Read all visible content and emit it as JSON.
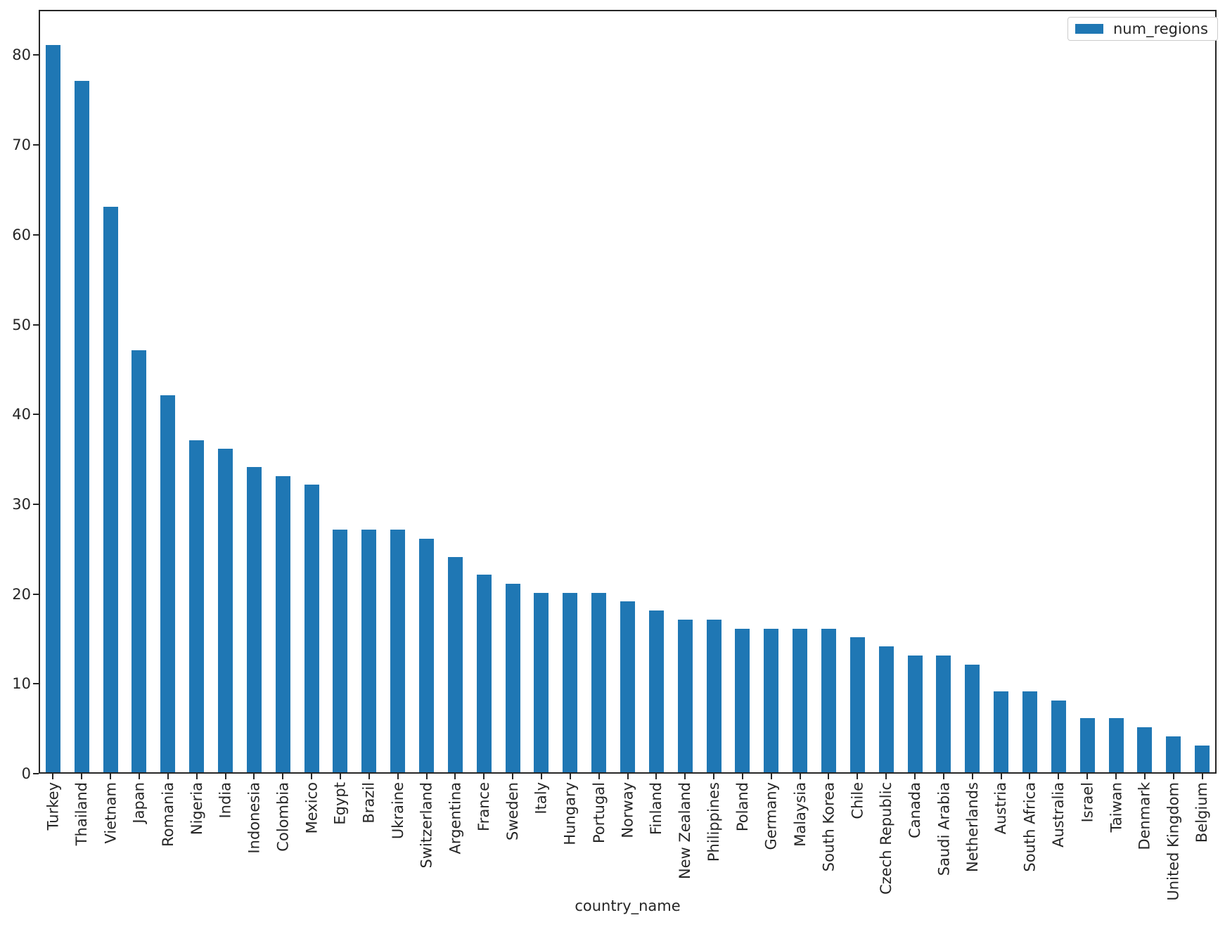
{
  "chart_data": {
    "type": "bar",
    "title": "",
    "xlabel": "country_name",
    "ylabel": "",
    "legend_entries": [
      "num_regions"
    ],
    "legend_position": "upper right",
    "grid": false,
    "ylim": [
      0,
      85
    ],
    "yticks": [
      0,
      10,
      20,
      30,
      40,
      50,
      60,
      70,
      80
    ],
    "bar_color": "#1f77b4",
    "axis_color": "#262626",
    "categories": [
      "Turkey",
      "Thailand",
      "Vietnam",
      "Japan",
      "Romania",
      "Nigeria",
      "India",
      "Indonesia",
      "Colombia",
      "Mexico",
      "Egypt",
      "Brazil",
      "Ukraine",
      "Switzerland",
      "Argentina",
      "France",
      "Sweden",
      "Italy",
      "Hungary",
      "Portugal",
      "Norway",
      "Finland",
      "New Zealand",
      "Philippines",
      "Poland",
      "Germany",
      "Malaysia",
      "South Korea",
      "Chile",
      "Czech Republic",
      "Canada",
      "Saudi Arabia",
      "Netherlands",
      "Austria",
      "South Africa",
      "Australia",
      "Israel",
      "Taiwan",
      "Denmark",
      "United Kingdom",
      "Belgium"
    ],
    "values": [
      81,
      77,
      63,
      47,
      42,
      37,
      36,
      34,
      33,
      32,
      27,
      27,
      27,
      26,
      24,
      22,
      21,
      20,
      20,
      20,
      19,
      18,
      17,
      17,
      16,
      16,
      16,
      16,
      15,
      14,
      13,
      13,
      12,
      9,
      9,
      8,
      6,
      6,
      5,
      4,
      3
    ]
  }
}
